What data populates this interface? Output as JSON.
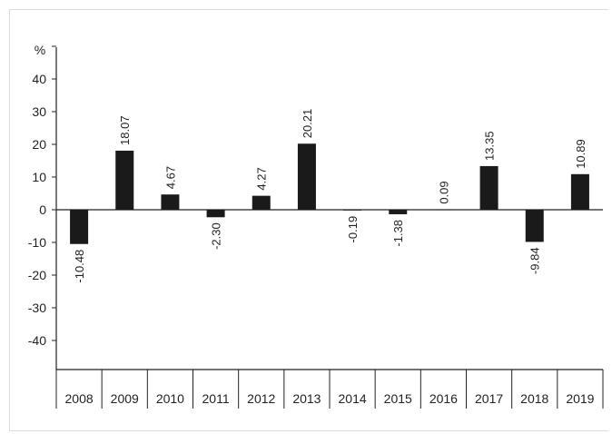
{
  "chart_data": {
    "type": "bar",
    "title": "",
    "xlabel": "",
    "ylabel": "%",
    "ylim": [
      -50,
      50
    ],
    "yticks": [
      -40,
      -30,
      -20,
      -10,
      0,
      10,
      20,
      30,
      40
    ],
    "grid": false,
    "categories": [
      "2008",
      "2009",
      "2010",
      "2011",
      "2012",
      "2013",
      "2014",
      "2015",
      "2016",
      "2017",
      "2018",
      "2019"
    ],
    "values": [
      -10.48,
      18.07,
      4.67,
      -2.3,
      4.27,
      20.21,
      -0.19,
      -1.38,
      0.09,
      13.35,
      -9.84,
      10.89
    ],
    "data_labels": [
      "-10.48",
      "18.07",
      "4.67",
      "-2.30",
      "4.27",
      "20.21",
      "-0.19",
      "-1.38",
      "0.09",
      "13.35",
      "-9.84",
      "10.89"
    ],
    "bar_color": "#1a1a1a"
  }
}
